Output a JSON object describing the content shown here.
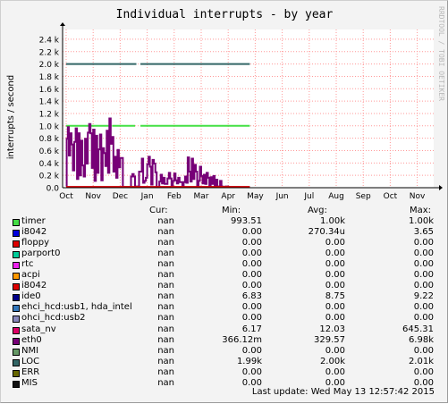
{
  "chart_data": {
    "type": "line",
    "title": "Individual interrupts - by year",
    "ylabel": "interrupts / second",
    "watermark": "RRDTOOL / TOBI OETIKER",
    "ylim": [
      0,
      2500
    ],
    "yticks": [
      {
        "v": 0,
        "label": "0.0"
      },
      {
        "v": 200,
        "label": "0.2 k"
      },
      {
        "v": 400,
        "label": "0.4 k"
      },
      {
        "v": 600,
        "label": "0.6 k"
      },
      {
        "v": 800,
        "label": "0.8 k"
      },
      {
        "v": 1000,
        "label": "1.0 k"
      },
      {
        "v": 1200,
        "label": "1.2 k"
      },
      {
        "v": 1400,
        "label": "1.4 k"
      },
      {
        "v": 1600,
        "label": "1.6 k"
      },
      {
        "v": 1800,
        "label": "1.8 k"
      },
      {
        "v": 2000,
        "label": "2.0 k"
      },
      {
        "v": 2200,
        "label": "2.2 k"
      },
      {
        "v": 2400,
        "label": "2.4 k"
      }
    ],
    "xticks": [
      "Oct",
      "Nov",
      "Dec",
      "Jan",
      "Feb",
      "Mar",
      "Apr",
      "May",
      "Jun",
      "Jul",
      "Aug",
      "Sep",
      "Oct",
      "Nov"
    ],
    "series": [
      {
        "name": "LOC",
        "color": "#336666",
        "segments": [
          [
            0,
            2.6,
            2000
          ],
          [
            2.75,
            6.8,
            2000
          ]
        ]
      },
      {
        "name": "timer",
        "color": "#44e044",
        "segments": [
          [
            0,
            1.6,
            1000
          ],
          [
            1.7,
            2.55,
            1000
          ],
          [
            2.75,
            6.8,
            1000
          ]
        ]
      },
      {
        "name": "eth0",
        "color": "#770077",
        "points": [
          [
            0.0,
            20
          ],
          [
            0.02,
            790
          ],
          [
            0.06,
            980
          ],
          [
            0.1,
            520
          ],
          [
            0.15,
            880
          ],
          [
            0.2,
            700
          ],
          [
            0.25,
            280
          ],
          [
            0.3,
            740
          ],
          [
            0.35,
            960
          ],
          [
            0.4,
            140
          ],
          [
            0.45,
            880
          ],
          [
            0.5,
            200
          ],
          [
            0.55,
            760
          ],
          [
            0.6,
            360
          ],
          [
            0.65,
            180
          ],
          [
            0.7,
            790
          ],
          [
            0.75,
            390
          ],
          [
            0.8,
            890
          ],
          [
            0.85,
            1030
          ],
          [
            0.9,
            880
          ],
          [
            0.95,
            320
          ],
          [
            1.0,
            940
          ],
          [
            1.05,
            110
          ],
          [
            1.1,
            840
          ],
          [
            1.15,
            240
          ],
          [
            1.2,
            620
          ],
          [
            1.25,
            860
          ],
          [
            1.3,
            120
          ],
          [
            1.35,
            640
          ],
          [
            1.4,
            560
          ],
          [
            1.45,
            350
          ],
          [
            1.5,
            920
          ],
          [
            1.55,
            240
          ],
          [
            1.6,
            1120
          ],
          [
            1.65,
            710
          ],
          [
            1.7,
            820
          ],
          [
            1.75,
            260
          ],
          [
            1.8,
            500
          ],
          [
            1.85,
            160
          ],
          [
            1.9,
            610
          ],
          [
            1.95,
            330
          ],
          [
            2.0,
            480
          ],
          [
            2.1,
            10
          ],
          [
            2.15,
            10
          ],
          [
            2.3,
            10
          ],
          [
            2.35,
            10
          ],
          [
            2.4,
            180
          ],
          [
            2.45,
            220
          ],
          [
            2.5,
            180
          ],
          [
            2.55,
            20
          ],
          [
            2.6,
            20
          ],
          [
            2.7,
            260
          ],
          [
            2.8,
            470
          ],
          [
            2.85,
            80
          ],
          [
            2.9,
            110
          ],
          [
            2.95,
            160
          ],
          [
            3.0,
            380
          ],
          [
            3.05,
            500
          ],
          [
            3.1,
            340
          ],
          [
            3.15,
            50
          ],
          [
            3.2,
            450
          ],
          [
            3.25,
            390
          ],
          [
            3.3,
            250
          ],
          [
            3.35,
            10
          ],
          [
            3.45,
            100
          ],
          [
            3.5,
            210
          ],
          [
            3.55,
            70
          ],
          [
            3.6,
            160
          ],
          [
            3.65,
            60
          ],
          [
            3.75,
            150
          ],
          [
            3.8,
            240
          ],
          [
            3.85,
            150
          ],
          [
            3.9,
            20
          ],
          [
            3.95,
            110
          ],
          [
            4.0,
            230
          ],
          [
            4.05,
            120
          ],
          [
            4.1,
            70
          ],
          [
            4.15,
            160
          ],
          [
            4.2,
            90
          ],
          [
            4.3,
            20
          ],
          [
            4.35,
            90
          ],
          [
            4.4,
            180
          ],
          [
            4.45,
            80
          ],
          [
            4.5,
            490
          ],
          [
            4.55,
            260
          ],
          [
            4.6,
            100
          ],
          [
            4.65,
            470
          ],
          [
            4.7,
            140
          ],
          [
            4.75,
            370
          ],
          [
            4.8,
            260
          ],
          [
            4.85,
            30
          ],
          [
            4.9,
            110
          ],
          [
            4.95,
            340
          ],
          [
            5.0,
            190
          ],
          [
            5.05,
            70
          ],
          [
            5.1,
            210
          ],
          [
            5.15,
            60
          ],
          [
            5.2,
            240
          ],
          [
            5.25,
            160
          ],
          [
            5.3,
            20
          ],
          [
            5.35,
            170
          ],
          [
            5.4,
            60
          ],
          [
            5.45,
            190
          ],
          [
            5.5,
            20
          ],
          [
            5.55,
            130
          ],
          [
            5.6,
            10
          ],
          [
            5.65,
            20
          ],
          [
            5.7,
            110
          ],
          [
            5.75,
            20
          ],
          [
            5.8,
            10
          ],
          [
            5.9,
            20
          ],
          [
            6.0,
            10
          ],
          [
            6.2,
            10
          ],
          [
            6.4,
            0
          ]
        ]
      },
      {
        "name": "ide0",
        "color": "#000088",
        "segments": [
          [
            0,
            6.8,
            9
          ]
        ]
      },
      {
        "name": "sata_nv",
        "color": "#dd0000",
        "segments": [
          [
            0,
            6.8,
            12
          ]
        ]
      }
    ]
  },
  "legend_header": {
    "cur": "Cur:",
    "min": "Min:",
    "avg": "Avg:",
    "max": "Max:"
  },
  "legend": [
    {
      "name": "timer",
      "color": "#44dd44",
      "cur": "nan",
      "min": "993.51",
      "avg": "1.00k",
      "max": "1.00k"
    },
    {
      "name": "i8042",
      "color": "#0000dd",
      "cur": "nan",
      "min": "0.00",
      "avg": "270.34u",
      "max": "3.65"
    },
    {
      "name": "floppy",
      "color": "#dd0000",
      "cur": "nan",
      "min": "0.00",
      "avg": "0.00",
      "max": "0.00"
    },
    {
      "name": "parport0",
      "color": "#00cc99",
      "cur": "nan",
      "min": "0.00",
      "avg": "0.00",
      "max": "0.00"
    },
    {
      "name": "rtc",
      "color": "#ee22ee",
      "cur": "nan",
      "min": "0.00",
      "avg": "0.00",
      "max": "0.00"
    },
    {
      "name": "acpi",
      "color": "#ff9900",
      "cur": "nan",
      "min": "0.00",
      "avg": "0.00",
      "max": "0.00"
    },
    {
      "name": "i8042",
      "color": "#dd0000",
      "cur": "nan",
      "min": "0.00",
      "avg": "0.00",
      "max": "0.00"
    },
    {
      "name": "ide0",
      "color": "#000088",
      "cur": "nan",
      "min": "6.83",
      "avg": "8.75",
      "max": "9.22"
    },
    {
      "name": "ehci_hcd:usb1, hda_intel",
      "color": "#3377bb",
      "cur": "nan",
      "min": "0.00",
      "avg": "0.00",
      "max": "0.00"
    },
    {
      "name": "ohci_hcd:usb2",
      "color": "#8888bb",
      "cur": "nan",
      "min": "0.00",
      "avg": "0.00",
      "max": "0.00"
    },
    {
      "name": "sata_nv",
      "color": "#dd0066",
      "cur": "nan",
      "min": "6.17",
      "avg": "12.03",
      "max": "645.31"
    },
    {
      "name": "eth0",
      "color": "#770077",
      "cur": "nan",
      "min": "366.12m",
      "avg": "329.57",
      "max": "6.98k"
    },
    {
      "name": "NMI",
      "color": "#669966",
      "cur": "nan",
      "min": "0.00",
      "avg": "0.00",
      "max": "0.00"
    },
    {
      "name": "LOC",
      "color": "#336666",
      "cur": "nan",
      "min": "1.99k",
      "avg": "2.00k",
      "max": "2.01k"
    },
    {
      "name": "ERR",
      "color": "#666600",
      "cur": "nan",
      "min": "0.00",
      "avg": "0.00",
      "max": "0.00"
    },
    {
      "name": "MIS",
      "color": "#111111",
      "cur": "nan",
      "min": "0.00",
      "avg": "0.00",
      "max": "0.00"
    }
  ],
  "footer": {
    "last_update": "Last update: Wed May 13 12:57:42 2015"
  }
}
